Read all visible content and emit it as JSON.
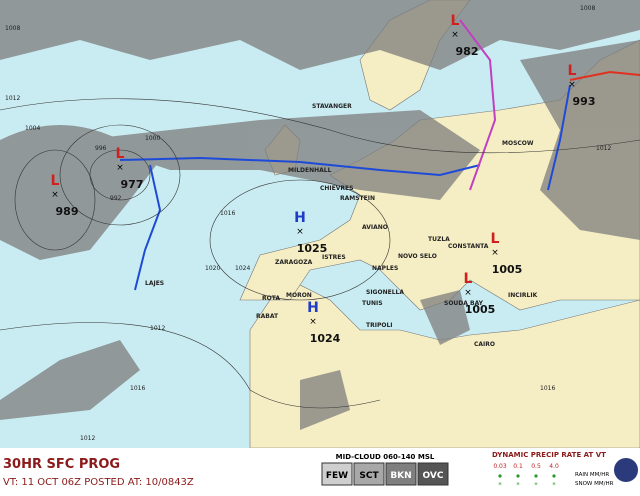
{
  "header": {
    "title": "30HR SFC PROG",
    "subtitle": "VT: 11 OCT 06Z POSTED AT: 10/0843Z"
  },
  "pressure_centers": [
    {
      "letter": "L",
      "value": "989"
    },
    {
      "letter": "L",
      "value": "977"
    },
    {
      "letter": "H",
      "value": "1025"
    },
    {
      "letter": "H",
      "value": "1024"
    },
    {
      "letter": "L",
      "value": "982"
    },
    {
      "letter": "L",
      "value": "993"
    },
    {
      "letter": "L",
      "value": "1005"
    },
    {
      "letter": "L",
      "value": "1005"
    }
  ],
  "cities": [
    "STAVANGER",
    "MOSCOW",
    "MILDENHALL",
    "CHIEVRES",
    "RAMSTEIN",
    "AVIANO",
    "TUZLA",
    "CONSTANTA",
    "ZARAGOZA",
    "ISTRES",
    "NAPLES",
    "NOVO SELO",
    "SIGONELLA",
    "TUNIS",
    "ROTA",
    "MORON",
    "RABAT",
    "TRIPOLI",
    "SOUDA BAY",
    "INCIRLIK",
    "CAIRO",
    "LAJES"
  ],
  "isobar_labels": [
    "1012",
    "1004",
    "1008",
    "996",
    "1000",
    "992",
    "1016",
    "1020",
    "1024",
    "1012",
    "1016",
    "1008",
    "1012",
    "1016",
    "1012"
  ],
  "legend": {
    "cloud_title": "MID-CLOUD 060-140 MSL",
    "cloud_levels": [
      "FEW",
      "SCT",
      "BKN",
      "OVC"
    ],
    "precip_title": "DYNAMIC PRECIP RATE AT VT",
    "precip_rates": [
      "0.03",
      "0.1",
      "0.5",
      "4.0"
    ],
    "rain": "RAIN MM/HR",
    "snow": "SNOW MM/HR"
  }
}
